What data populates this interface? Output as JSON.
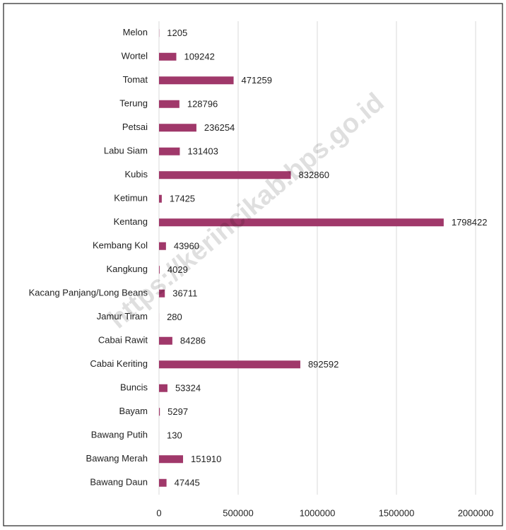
{
  "chart_data": {
    "type": "barh",
    "watermark": "https://kerincikab.bps.go.id",
    "categories": [
      "Melon",
      "Wortel",
      "Tomat",
      "Terung",
      "Petsai",
      "Labu Siam",
      "Kubis",
      "Ketimun",
      "Kentang",
      "Kembang Kol",
      "Kangkung",
      "Kacang Panjang/Long Beans",
      "Jamur Tiram",
      "Cabai Rawit",
      "Cabai Keriting",
      "Buncis",
      "Bayam",
      "Bawang Putih",
      "Bawang Merah",
      "Bawang Daun"
    ],
    "values": [
      1205,
      109242,
      471259,
      128796,
      236254,
      131403,
      832860,
      17425,
      1798422,
      43960,
      4029,
      36711,
      280,
      84286,
      892592,
      53324,
      5297,
      130,
      151910,
      47445
    ],
    "color": "#a0386a",
    "xlim": [
      0,
      2000000
    ],
    "xticks": [
      0,
      500000,
      1000000,
      1500000,
      2000000
    ],
    "grid": true
  }
}
